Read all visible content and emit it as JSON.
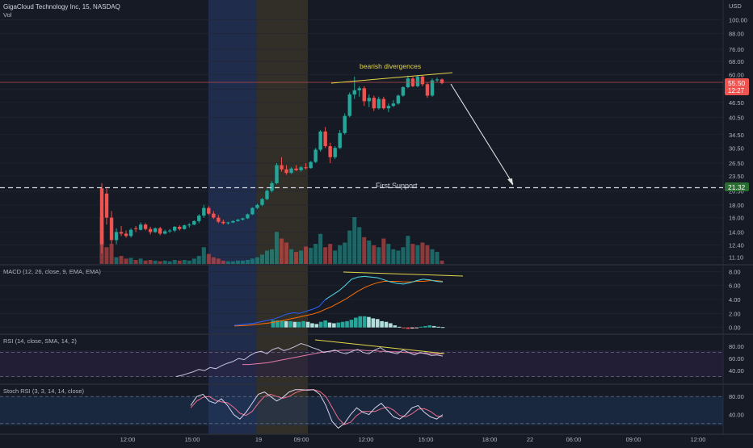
{
  "header": {
    "symbol": "GigaCloud Technology Inc, 15, NASDAQ",
    "volume_label": "Vol",
    "currency": "USD"
  },
  "colors": {
    "background": "#161a25",
    "up": "#26a69a",
    "down": "#ef5350",
    "grid": "#232733",
    "axis_text": "#b2b5be",
    "annotation": "#e3d54a",
    "macd_line": "#2962ff",
    "signal_line": "#ff6d00",
    "rsi_line": "#7e57c2",
    "stoch_k": "#2962ff",
    "stoch_d": "#ef6c8a",
    "blue_session": "#2a3c6b",
    "orange_session": "#4a3f2b",
    "price_line": "#b94a48"
  },
  "annotations": {
    "divergence": "bearish divergences",
    "support": "First Support",
    "support_price": "21.32"
  },
  "last_price": {
    "value": "55.50",
    "countdown": "12:27"
  },
  "x_axis": {
    "ticks": [
      {
        "label": "12:00",
        "x": 158
      },
      {
        "label": "15:00",
        "x": 238
      },
      {
        "label": "19",
        "x": 320
      },
      {
        "label": "09:00",
        "x": 373
      },
      {
        "label": "12:00",
        "x": 453
      },
      {
        "label": "15:00",
        "x": 527
      },
      {
        "label": "18:00",
        "x": 606
      },
      {
        "label": "22",
        "x": 656
      },
      {
        "label": "06:00",
        "x": 710
      },
      {
        "label": "09:00",
        "x": 784
      },
      {
        "label": "12:00",
        "x": 864
      }
    ]
  },
  "chart_data": [
    {
      "type": "candlestick",
      "title": "",
      "scale": "log",
      "y_ticks": [
        100.0,
        88.0,
        76.0,
        68.0,
        60.0,
        52.5,
        46.5,
        40.5,
        34.5,
        30.5,
        26.5,
        23.5,
        20.5,
        18.0,
        16.0,
        14.0,
        12.4,
        11.1
      ],
      "ylim": [
        10.5,
        108
      ],
      "candles": [
        [
          21,
          22,
          11.5,
          12.5
        ],
        [
          20,
          21,
          15,
          16
        ],
        [
          16,
          17,
          12.5,
          13
        ],
        [
          13,
          14.5,
          12.5,
          14
        ],
        [
          14,
          14.8,
          13.5,
          13.8
        ],
        [
          13.8,
          14.2,
          13.3,
          13.5
        ],
        [
          13.5,
          14.5,
          13.3,
          14.3
        ],
        [
          14.5,
          14.8,
          14.0,
          14.4
        ],
        [
          14.3,
          15.3,
          14.2,
          15.0
        ],
        [
          15.0,
          15.2,
          14.2,
          14.4
        ],
        [
          14.4,
          14.7,
          13.7,
          14.0
        ],
        [
          14.0,
          14.6,
          13.9,
          14.5
        ],
        [
          14.5,
          14.7,
          13.6,
          13.8
        ],
        [
          13.8,
          14.3,
          13.7,
          14.1
        ],
        [
          14.1,
          14.4,
          13.9,
          14.2
        ],
        [
          14.2,
          14.8,
          14.0,
          14.7
        ],
        [
          14.7,
          14.9,
          14.2,
          14.4
        ],
        [
          14.4,
          15.0,
          14.3,
          14.9
        ],
        [
          14.9,
          15.2,
          14.6,
          15.0
        ],
        [
          15.0,
          15.6,
          14.9,
          15.5
        ],
        [
          15.5,
          16.5,
          15.2,
          16.3
        ],
        [
          16.3,
          18.0,
          16.0,
          17.5
        ],
        [
          17.5,
          17.8,
          16.4,
          16.6
        ],
        [
          16.6,
          17.0,
          15.8,
          16.0
        ],
        [
          16.0,
          16.4,
          15.2,
          15.4
        ],
        [
          15.4,
          15.7,
          15.0,
          15.2
        ],
        [
          15.2,
          15.4,
          15.0,
          15.3
        ],
        [
          15.3,
          15.6,
          15.2,
          15.5
        ],
        [
          15.5,
          15.8,
          15.4,
          15.7
        ],
        [
          15.7,
          16.0,
          15.6,
          15.9
        ],
        [
          15.9,
          16.6,
          15.8,
          16.5
        ],
        [
          16.5,
          17.6,
          16.4,
          17.5
        ],
        [
          17.5,
          18.2,
          17.3,
          18.0
        ],
        [
          18.0,
          19.2,
          17.8,
          19.0
        ],
        [
          19.0,
          20.8,
          18.8,
          20.5
        ],
        [
          20.5,
          22.4,
          20.2,
          22.0
        ],
        [
          22.0,
          26.5,
          21.8,
          26.0
        ],
        [
          26.0,
          28.0,
          24.5,
          25.0
        ],
        [
          25.0,
          26.0,
          23.8,
          24.2
        ],
        [
          24.2,
          25.5,
          24.0,
          25.2
        ],
        [
          25.2,
          26.0,
          24.6,
          24.8
        ],
        [
          24.8,
          25.8,
          24.5,
          25.5
        ],
        [
          25.5,
          26.5,
          25.0,
          25.3
        ],
        [
          25.3,
          27.0,
          25.2,
          26.8
        ],
        [
          26.8,
          30.5,
          26.5,
          30.0
        ],
        [
          30.0,
          36.0,
          29.5,
          35.5
        ],
        [
          35.5,
          37.0,
          30.5,
          31.0
        ],
        [
          31.0,
          32.0,
          26.5,
          28.0
        ],
        [
          28.0,
          31.0,
          27.5,
          30.5
        ],
        [
          30.5,
          36.0,
          30.2,
          35.0
        ],
        [
          35.0,
          42.0,
          34.5,
          41.0
        ],
        [
          41.0,
          51.0,
          40.5,
          50.0
        ],
        [
          50.0,
          59.0,
          48.0,
          52.0
        ],
        [
          52.0,
          54.0,
          49.0,
          53.0
        ],
        [
          53.0,
          54.0,
          45.0,
          47.0
        ],
        [
          47.0,
          50.0,
          44.5,
          48.5
        ],
        [
          48.5,
          49.5,
          43.0,
          44.0
        ],
        [
          44.0,
          49.0,
          43.5,
          48.0
        ],
        [
          48.0,
          49.0,
          43.5,
          44.0
        ],
        [
          44.0,
          46.0,
          42.5,
          45.0
        ],
        [
          45.0,
          47.5,
          44.5,
          46.0
        ],
        [
          46.0,
          50.0,
          45.5,
          49.5
        ],
        [
          49.5,
          54.0,
          49.0,
          53.5
        ],
        [
          53.5,
          59.5,
          53.0,
          58.0
        ],
        [
          58.0,
          59.0,
          53.5,
          54.0
        ],
        [
          54.0,
          59.5,
          53.5,
          59.0
        ],
        [
          59.0,
          59.5,
          54.0,
          55.0
        ],
        [
          55.0,
          56.0,
          48.5,
          49.5
        ],
        [
          49.5,
          58.0,
          49.0,
          57.0
        ],
        [
          57.0,
          58.5,
          56.0,
          57.5
        ],
        [
          57.5,
          58.0,
          55.0,
          55.5
        ]
      ],
      "volume": [
        70,
        25,
        30,
        10,
        12,
        8,
        9,
        6,
        8,
        5,
        6,
        5,
        4,
        5,
        4,
        6,
        5,
        6,
        5,
        8,
        12,
        25,
        15,
        10,
        8,
        5,
        4,
        4,
        5,
        5,
        6,
        8,
        10,
        14,
        20,
        22,
        48,
        38,
        32,
        22,
        18,
        20,
        26,
        24,
        30,
        45,
        25,
        30,
        20,
        28,
        32,
        50,
        70,
        55,
        40,
        35,
        28,
        25,
        38,
        30,
        22,
        20,
        25,
        42,
        30,
        28,
        32,
        28,
        22,
        18,
        5
      ],
      "support_level": 21.32,
      "current_price": 55.5
    },
    {
      "type": "line",
      "title": "MACD (12, 26, close, 9, EMA, EMA)",
      "y_ticks": [
        8.0,
        6.0,
        4.0,
        2.0,
        0.0
      ],
      "ylim": [
        -0.5,
        8.5
      ],
      "macd": [
        0.3,
        0.4,
        0.5,
        0.6,
        0.8,
        1.0,
        1.2,
        1.5,
        1.9,
        2.1,
        2.0,
        2.3,
        2.6,
        3.0,
        4.0,
        4.6,
        5.2,
        6.0,
        6.9,
        7.2,
        7.3,
        7.2,
        7.1,
        6.8,
        6.5,
        6.3,
        6.2,
        6.4,
        6.7,
        6.9,
        6.8,
        6.6,
        6.5
      ],
      "signal": [
        0.2,
        0.25,
        0.3,
        0.4,
        0.5,
        0.6,
        0.75,
        0.9,
        1.1,
        1.3,
        1.5,
        1.7,
        1.9,
        2.2,
        2.6,
        3.0,
        3.5,
        4.0,
        4.6,
        5.2,
        5.7,
        6.1,
        6.4,
        6.6,
        6.6,
        6.6,
        6.5,
        6.5,
        6.6,
        6.6,
        6.7,
        6.7,
        6.6
      ],
      "histogram": [
        1.0,
        1.0,
        1.0,
        0.9,
        0.9,
        0.8,
        0.8,
        0.9,
        0.8,
        0.6,
        0.5,
        0.8,
        1.0,
        0.7,
        0.6,
        0.7,
        0.8,
        0.9,
        1.1,
        1.4,
        1.6,
        1.6,
        1.5,
        1.3,
        1.2,
        0.9,
        0.8,
        0.6,
        0.3,
        0.1,
        -0.1,
        -0.2,
        -0.15,
        -0.1,
        0.1,
        0.2,
        0.3,
        0.2,
        0.1,
        0.05
      ]
    },
    {
      "type": "line",
      "title": "RSI (14, close, SMA, 14, 2)",
      "y_ticks": [
        80.0,
        60.0,
        40.0
      ],
      "ylim": [
        20,
        95
      ],
      "rsi": [
        30,
        32,
        35,
        38,
        42,
        40,
        45,
        43,
        48,
        52,
        55,
        60,
        58,
        65,
        70,
        72,
        68,
        75,
        78,
        73,
        76,
        80,
        85,
        82,
        78,
        75,
        70,
        72,
        74,
        70,
        68,
        72,
        75,
        70,
        68,
        74,
        78,
        72,
        70,
        68,
        74,
        70,
        66,
        70,
        68,
        65,
        66,
        64
      ],
      "rsi_ma": [
        50,
        50,
        51,
        52,
        53,
        55,
        57,
        59,
        61,
        63,
        65,
        67,
        69,
        71,
        72,
        73,
        74,
        74,
        74,
        74,
        73,
        73,
        72,
        72,
        71,
        71,
        70,
        70,
        69,
        69,
        68,
        68,
        68
      ],
      "bands": [
        70,
        30
      ]
    },
    {
      "type": "line",
      "title": "Stoch RSI (3, 3, 14, 14, close)",
      "y_ticks": [
        80.0,
        40.0
      ],
      "ylim": [
        0,
        100
      ],
      "k": [
        60,
        80,
        85,
        70,
        65,
        75,
        60,
        40,
        30,
        45,
        65,
        85,
        90,
        80,
        70,
        78,
        90,
        95,
        95,
        94,
        95,
        85,
        60,
        25,
        10,
        20,
        40,
        55,
        45,
        40,
        55,
        65,
        50,
        35,
        30,
        40,
        55,
        60,
        45,
        35,
        30,
        40
      ],
      "d": [
        55,
        70,
        78,
        80,
        72,
        68,
        66,
        56,
        43,
        38,
        47,
        65,
        80,
        85,
        80,
        76,
        80,
        88,
        93,
        95,
        95,
        91,
        80,
        56,
        32,
        18,
        23,
        38,
        47,
        47,
        47,
        53,
        57,
        50,
        38,
        35,
        42,
        52,
        53,
        47,
        37,
        35
      ]
    }
  ]
}
